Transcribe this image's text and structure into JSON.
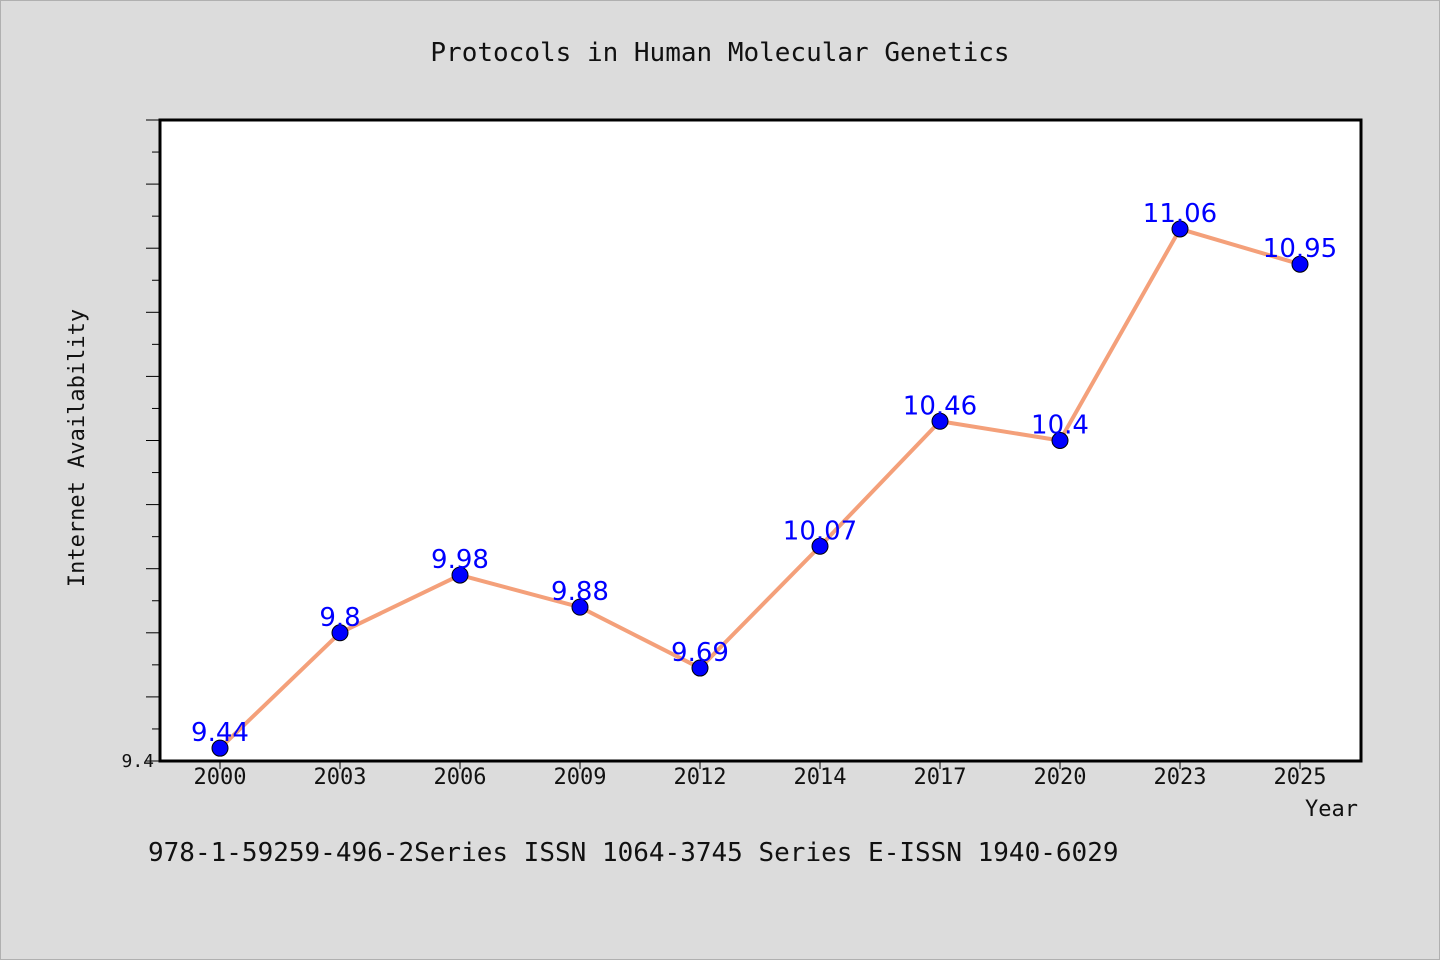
{
  "chart_data": {
    "type": "line",
    "title": "Protocols in Human Molecular Genetics",
    "xlabel": "Year",
    "ylabel": "Internet Availability",
    "categories": [
      "2000",
      "2003",
      "2006",
      "2009",
      "2012",
      "2014",
      "2017",
      "2020",
      "2023",
      "2025"
    ],
    "series": [
      {
        "values": [
          9.44,
          9.8,
          9.98,
          9.88,
          9.69,
          10.07,
          10.46,
          10.4,
          11.06,
          10.95
        ],
        "data_labels": [
          "9.44",
          "9.8",
          "9.98",
          "9.88",
          "9.69",
          "10.07",
          "10.46",
          "10.4",
          "11.06",
          "10.95"
        ]
      }
    ],
    "ylim": [
      9.4,
      11.4
    ],
    "y_tick_labels": [
      "9.4"
    ],
    "grid": false,
    "line_color": "#f4a07a",
    "marker_color": "#0000ff",
    "label_color": "#0000ff"
  },
  "footer": {
    "text": "978-1-59259-496-2Series ISSN 1064-3745 Series E-ISSN 1940-6029"
  }
}
